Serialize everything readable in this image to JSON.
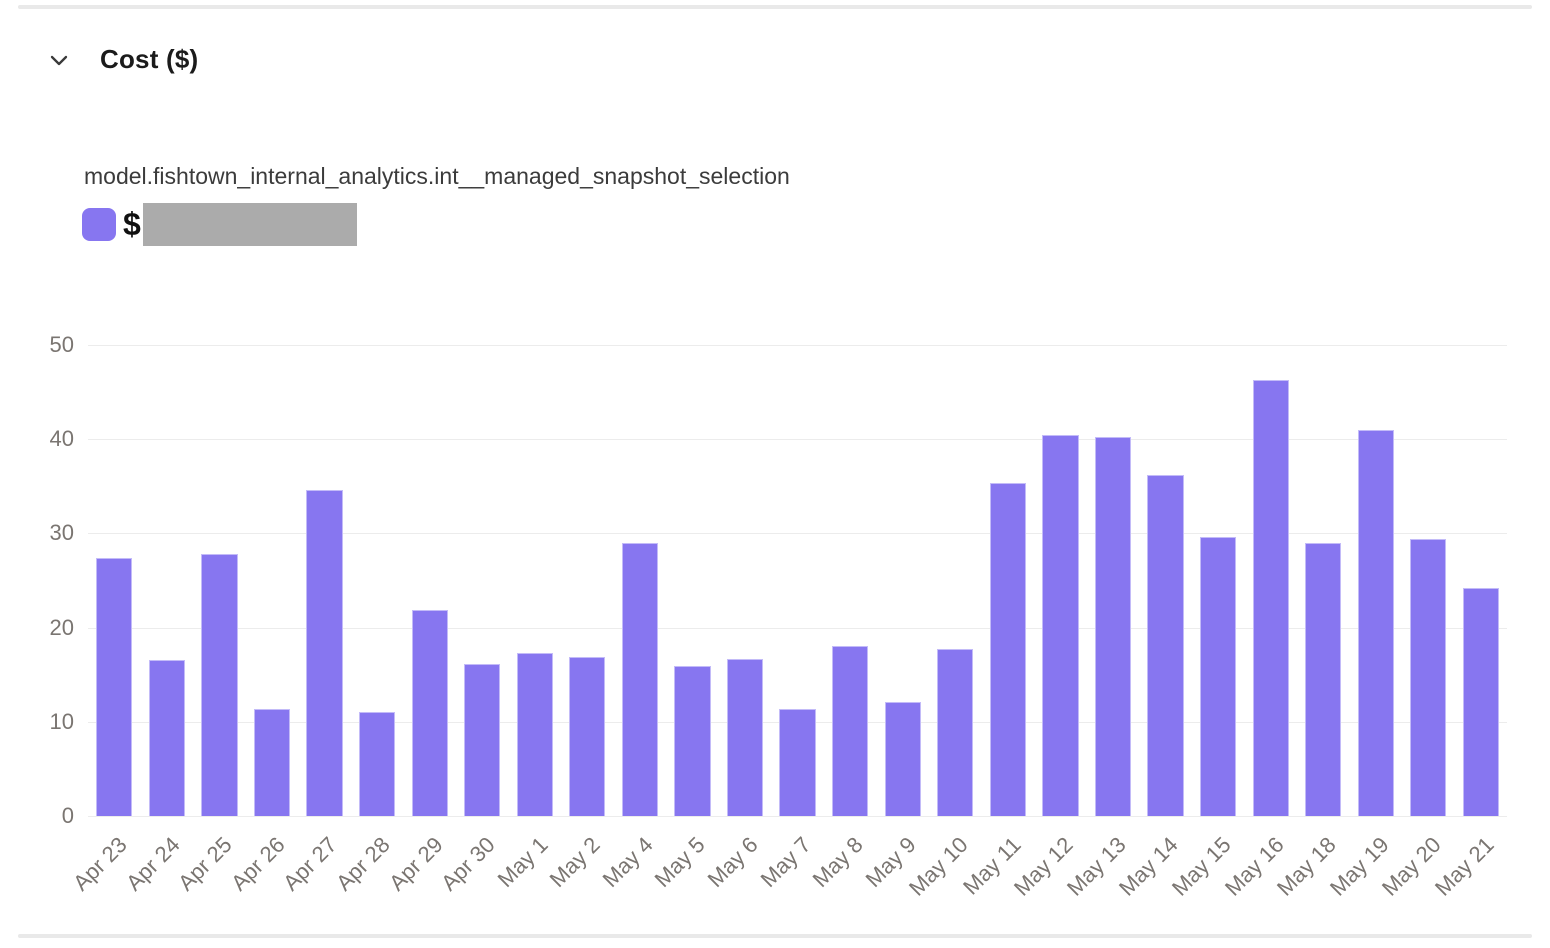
{
  "header": {
    "title": "Cost ($)",
    "collapse_icon": "chevron-down"
  },
  "chart": {
    "subtitle": "model.fishtown_internal_analytics.int__managed_snapshot_selection",
    "legend": {
      "label": "$",
      "value_redacted": true
    }
  },
  "colors": {
    "bar": "#8776f0",
    "legend_swatch": "#8776f0",
    "redacted_box": "#ababab",
    "gridline": "#ececec",
    "axis_text": "#7a7571",
    "title_text": "#1b1b1b",
    "divider": "#e9e9e9"
  },
  "chart_data": {
    "type": "bar",
    "title": "Cost ($)",
    "series_label": "model.fishtown_internal_analytics.int__managed_snapshot_selection",
    "categories": [
      "Apr 23",
      "Apr 24",
      "Apr 25",
      "Apr 26",
      "Apr 27",
      "Apr 28",
      "Apr 29",
      "Apr 30",
      "May 1",
      "May 2",
      "May 4",
      "May 5",
      "May 6",
      "May 7",
      "May 8",
      "May 9",
      "May 10",
      "May 11",
      "May 12",
      "May 13",
      "May 14",
      "May 15",
      "May 16",
      "May 18",
      "May 19",
      "May 20",
      "May 21"
    ],
    "values": [
      27.4,
      16.6,
      27.8,
      11.4,
      34.6,
      11.0,
      21.9,
      16.1,
      17.3,
      16.9,
      29.0,
      15.9,
      16.7,
      11.4,
      18.0,
      12.1,
      17.7,
      35.3,
      40.5,
      40.2,
      36.2,
      29.6,
      46.3,
      29.0,
      41.0,
      29.4,
      24.2
    ],
    "xlabel": "",
    "ylabel": "",
    "ylim": [
      0,
      50
    ],
    "yticks": [
      0,
      10,
      20,
      30,
      40,
      50
    ],
    "grid": true,
    "x_tick_rotation": -45,
    "legend_position": "top-left",
    "bar_color": "#8776f0"
  }
}
